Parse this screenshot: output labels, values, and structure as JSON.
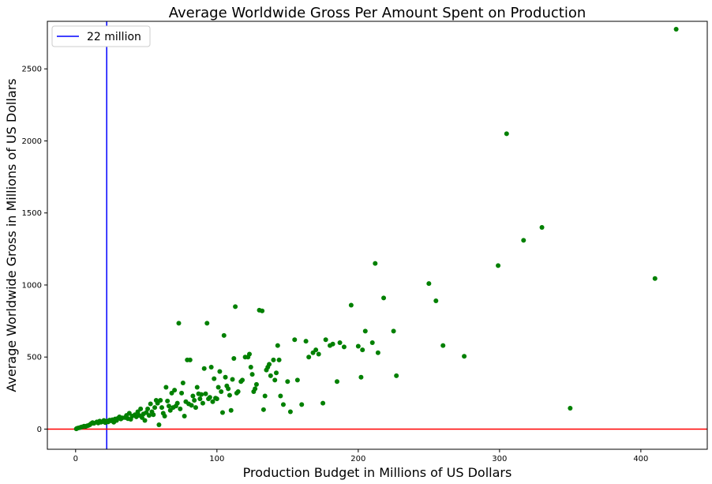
{
  "chart_data": {
    "type": "scatter",
    "title": "Average Worldwide Gross Per Amount Spent on Production",
    "xlabel": "Production Budget in Millions of US Dollars",
    "ylabel": "Average Worldwide Gross in Millions of US Dollars",
    "xlim": [
      -20,
      447
    ],
    "ylim": [
      -140,
      2830
    ],
    "xticks": [
      0,
      100,
      200,
      300,
      400
    ],
    "yticks": [
      0,
      500,
      1000,
      1500,
      2000,
      2500
    ],
    "grid": false,
    "legend_position": "top-left",
    "reference_lines": [
      {
        "orientation": "vertical",
        "value": 22,
        "color": "#0000ff",
        "label": "22 million"
      },
      {
        "orientation": "horizontal",
        "value": 0,
        "color": "#ff0000"
      }
    ],
    "series": [
      {
        "color": "#008000",
        "points": [
          [
            0.5,
            2
          ],
          [
            1,
            5
          ],
          [
            2,
            8
          ],
          [
            3,
            10
          ],
          [
            4,
            14
          ],
          [
            5,
            16
          ],
          [
            6,
            20
          ],
          [
            7,
            18
          ],
          [
            8,
            22
          ],
          [
            9,
            25
          ],
          [
            10,
            30
          ],
          [
            11,
            38
          ],
          [
            12,
            45
          ],
          [
            13,
            40
          ],
          [
            15,
            50
          ],
          [
            16,
            42
          ],
          [
            17,
            55
          ],
          [
            18,
            48
          ],
          [
            19,
            52
          ],
          [
            20,
            60
          ],
          [
            21,
            45
          ],
          [
            22,
            55
          ],
          [
            23,
            50
          ],
          [
            24,
            62
          ],
          [
            25,
            58
          ],
          [
            26,
            65
          ],
          [
            27,
            48
          ],
          [
            28,
            70
          ],
          [
            29,
            60
          ],
          [
            30,
            75
          ],
          [
            31,
            85
          ],
          [
            32,
            70
          ],
          [
            33,
            78
          ],
          [
            35,
            80
          ],
          [
            36,
            95
          ],
          [
            37,
            72
          ],
          [
            38,
            110
          ],
          [
            39,
            68
          ],
          [
            40,
            90
          ],
          [
            42,
            100
          ],
          [
            43,
            85
          ],
          [
            44,
            120
          ],
          [
            45,
            95
          ],
          [
            46,
            140
          ],
          [
            47,
            80
          ],
          [
            48,
            105
          ],
          [
            49,
            60
          ],
          [
            50,
            115
          ],
          [
            51,
            140
          ],
          [
            52,
            95
          ],
          [
            53,
            175
          ],
          [
            54,
            120
          ],
          [
            55,
            100
          ],
          [
            56,
            150
          ],
          [
            57,
            200
          ],
          [
            58,
            180
          ],
          [
            59,
            30
          ],
          [
            60,
            200
          ],
          [
            61,
            150
          ],
          [
            62,
            110
          ],
          [
            63,
            90
          ],
          [
            64,
            290
          ],
          [
            65,
            195
          ],
          [
            66,
            160
          ],
          [
            67,
            130
          ],
          [
            68,
            250
          ],
          [
            69,
            150
          ],
          [
            70,
            270
          ],
          [
            71,
            160
          ],
          [
            72,
            180
          ],
          [
            73,
            735
          ],
          [
            74,
            140
          ],
          [
            75,
            250
          ],
          [
            76,
            320
          ],
          [
            77,
            90
          ],
          [
            78,
            190
          ],
          [
            79,
            480
          ],
          [
            80,
            175
          ],
          [
            81,
            480
          ],
          [
            82,
            165
          ],
          [
            83,
            230
          ],
          [
            84,
            200
          ],
          [
            85,
            150
          ],
          [
            86,
            290
          ],
          [
            87,
            245
          ],
          [
            88,
            210
          ],
          [
            89,
            240
          ],
          [
            90,
            180
          ],
          [
            91,
            420
          ],
          [
            92,
            245
          ],
          [
            93,
            735
          ],
          [
            94,
            210
          ],
          [
            95,
            220
          ],
          [
            96,
            430
          ],
          [
            97,
            190
          ],
          [
            98,
            350
          ],
          [
            99,
            215
          ],
          [
            100,
            210
          ],
          [
            101,
            290
          ],
          [
            102,
            400
          ],
          [
            103,
            260
          ],
          [
            104,
            115
          ],
          [
            105,
            650
          ],
          [
            106,
            360
          ],
          [
            107,
            300
          ],
          [
            108,
            280
          ],
          [
            109,
            235
          ],
          [
            110,
            130
          ],
          [
            111,
            345
          ],
          [
            112,
            490
          ],
          [
            113,
            850
          ],
          [
            114,
            250
          ],
          [
            115,
            260
          ],
          [
            117,
            330
          ],
          [
            118,
            340
          ],
          [
            120,
            500
          ],
          [
            122,
            500
          ],
          [
            123,
            520
          ],
          [
            124,
            430
          ],
          [
            125,
            380
          ],
          [
            126,
            260
          ],
          [
            127,
            280
          ],
          [
            128,
            310
          ],
          [
            130,
            825
          ],
          [
            132,
            820
          ],
          [
            133,
            135
          ],
          [
            134,
            230
          ],
          [
            135,
            410
          ],
          [
            136,
            430
          ],
          [
            137,
            450
          ],
          [
            138,
            370
          ],
          [
            140,
            480
          ],
          [
            141,
            340
          ],
          [
            142,
            390
          ],
          [
            143,
            580
          ],
          [
            144,
            480
          ],
          [
            145,
            230
          ],
          [
            147,
            170
          ],
          [
            150,
            330
          ],
          [
            152,
            120
          ],
          [
            155,
            620
          ],
          [
            157,
            340
          ],
          [
            160,
            170
          ],
          [
            163,
            610
          ],
          [
            165,
            500
          ],
          [
            168,
            530
          ],
          [
            170,
            550
          ],
          [
            172,
            520
          ],
          [
            175,
            180
          ],
          [
            177,
            620
          ],
          [
            180,
            580
          ],
          [
            182,
            590
          ],
          [
            185,
            330
          ],
          [
            187,
            600
          ],
          [
            190,
            570
          ],
          [
            195,
            860
          ],
          [
            200,
            575
          ],
          [
            202,
            360
          ],
          [
            203,
            550
          ],
          [
            205,
            680
          ],
          [
            210,
            600
          ],
          [
            212,
            1150
          ],
          [
            214,
            530
          ],
          [
            218,
            910
          ],
          [
            225,
            680
          ],
          [
            227,
            370
          ],
          [
            250,
            1010
          ],
          [
            255,
            890
          ],
          [
            260,
            580
          ],
          [
            275,
            505
          ],
          [
            299,
            1135
          ],
          [
            305,
            2050
          ],
          [
            317,
            1310
          ],
          [
            330,
            1400
          ],
          [
            350,
            145
          ],
          [
            410,
            1045
          ],
          [
            425,
            2775
          ]
        ]
      }
    ]
  }
}
